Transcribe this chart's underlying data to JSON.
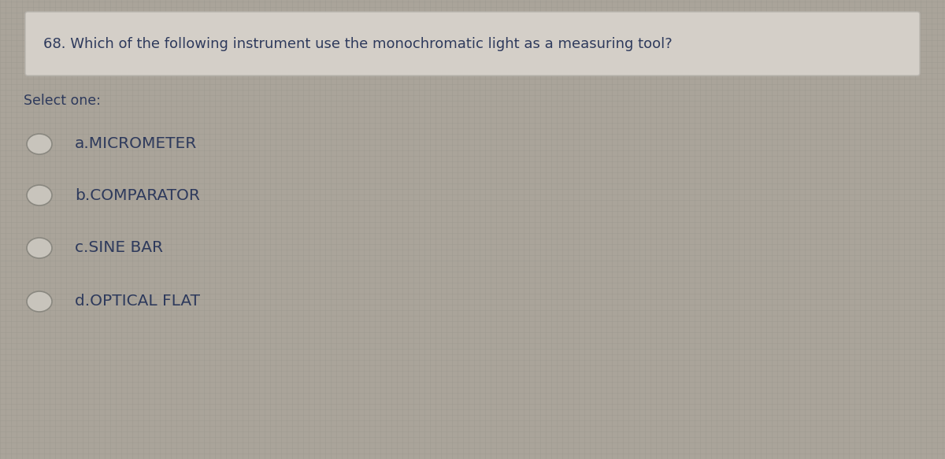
{
  "question": "68. Which of the following instrument use the monochromatic light as a measuring tool?",
  "select_label": "Select one:",
  "options": [
    "a.MICROMETER",
    "b.COMPARATOR",
    "c.SINE BAR",
    "d.OPTICAL FLAT"
  ],
  "bg_color": "#aaa49a",
  "text_color": "#2e3a5c",
  "question_box_color": "#d4cfc8",
  "question_box_border": "#b8b4ae",
  "grid_color": "#9a958c",
  "question_fontsize": 13.0,
  "select_fontsize": 12.5,
  "option_fontsize": 14.5,
  "fig_width": 12.0,
  "fig_height": 5.83
}
